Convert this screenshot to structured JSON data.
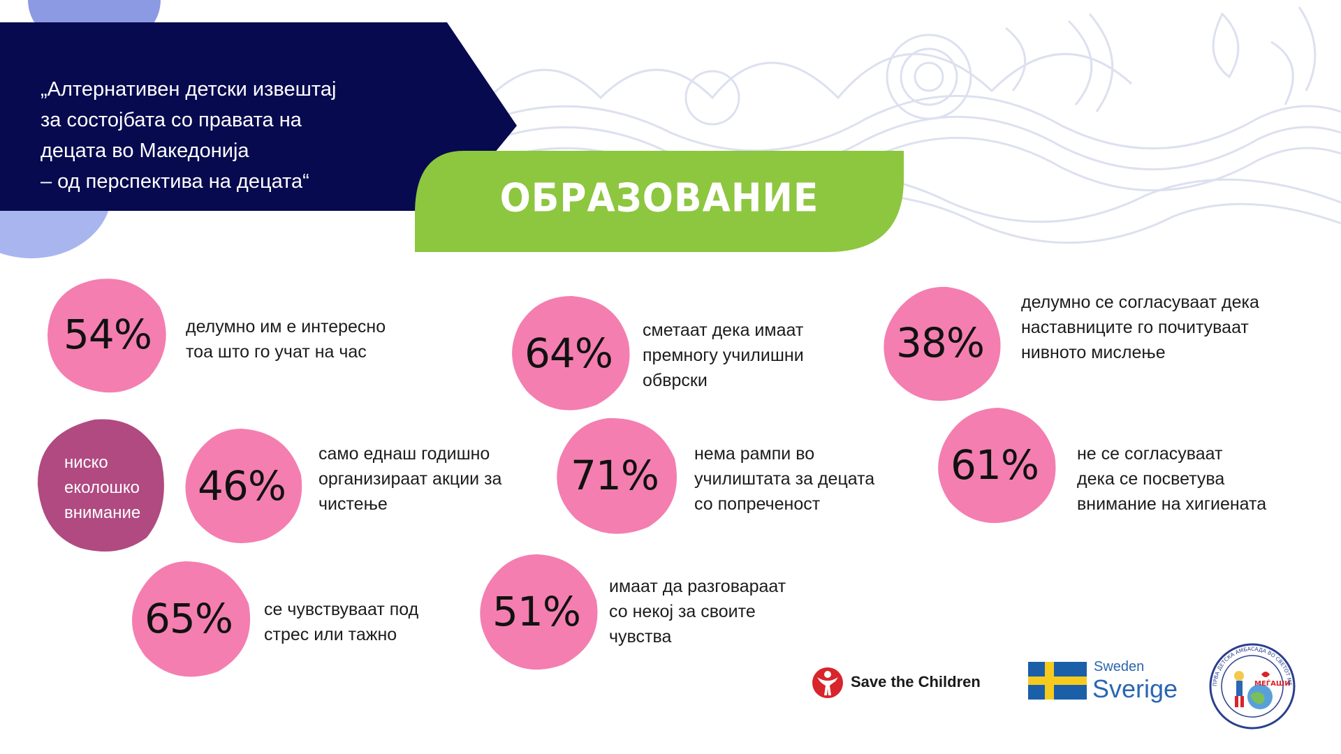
{
  "header": {
    "title_lines": [
      "„Алтернативен детски извештај",
      "за состојбата со правата на",
      "децата во Македонија",
      "– од перспектива на децата“"
    ],
    "section_title": "ОБРАЗОВАНИЕ"
  },
  "colors": {
    "navy": "#070a4f",
    "green": "#8dc63f",
    "pink": "#f47eb0",
    "plum": "#b04a81",
    "periwinkle": "#a9b5ef"
  },
  "stats": [
    {
      "value": "54%",
      "lines": [
        "делумно им е интересно",
        "тоа што го учат на час"
      ]
    },
    {
      "value": "64%",
      "lines": [
        "сметаат дека имаат",
        "премногу училишни",
        "обврски"
      ]
    },
    {
      "value": "38%",
      "lines": [
        "делумно се согласуваат дека",
        "наставниците го почитуваат",
        "нивното мислење"
      ]
    },
    {
      "value": "46%",
      "lines": [
        "само еднаш годишно",
        "организираат акции за",
        "чистење"
      ]
    },
    {
      "value": "71%",
      "lines": [
        "нема рампи во",
        "училиштата за децата",
        "со попреченост"
      ]
    },
    {
      "value": "61%",
      "lines": [
        "не се согласуваат",
        "дека се посветува",
        "внимание на хигиената"
      ]
    },
    {
      "value": "65%",
      "lines": [
        "се чувствуваат под",
        "стрес или тажно"
      ]
    },
    {
      "value": "51%",
      "lines": [
        "имаат да разговараат",
        "со некој за своите",
        "чувства"
      ]
    }
  ],
  "eco_badge": {
    "lines": [
      "ниско",
      "еколошко",
      "внимание"
    ]
  },
  "logos": {
    "save_the_children": "Save the Children",
    "sweden_small": "Sweden",
    "sweden_big": "Sverige",
    "emblem_text": "ПРВА ДЕТСКА АМБАСАДА ВО СВЕТОТ МЕЃАШИ · РЕПУБЛИКА МАКЕДОНИЈА",
    "emblem_name": "МЕЃАШИ"
  }
}
